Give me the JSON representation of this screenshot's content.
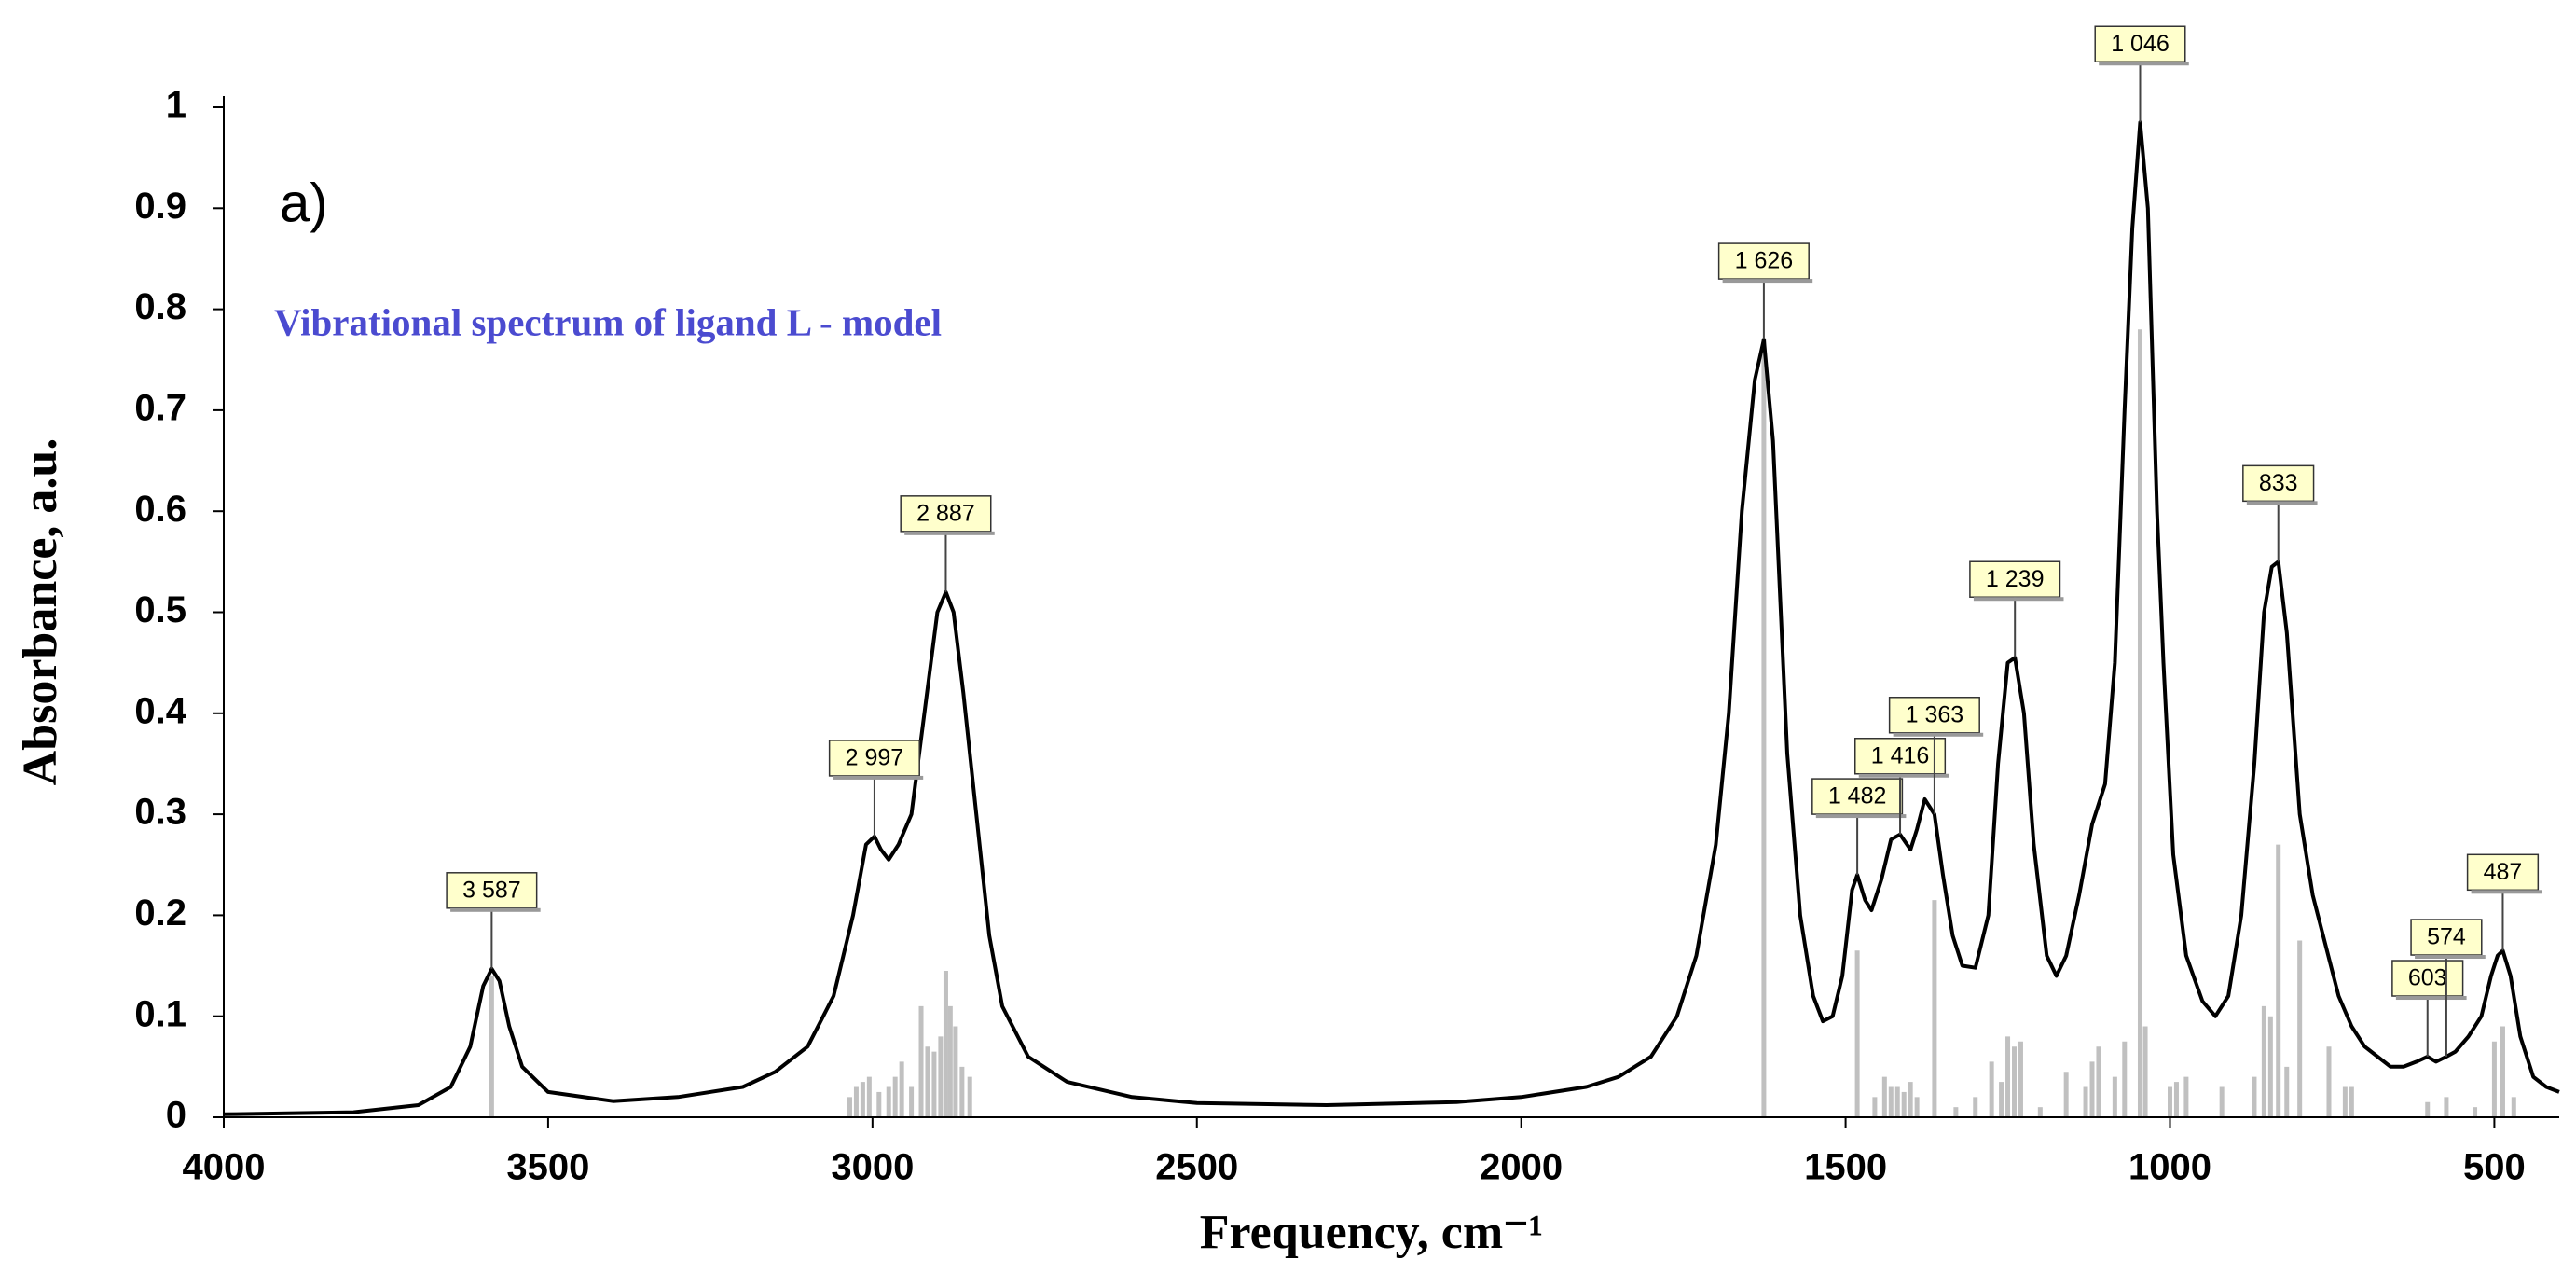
{
  "chart_data": {
    "type": "line",
    "panel_label": "a)",
    "annotation": "Vibrational spectrum of ligand L - model",
    "x_label": "Frequency, cm⁻¹",
    "y_label": "Absorbance, a.u.",
    "xlim": [
      4000,
      400
    ],
    "ylim": [
      0,
      1
    ],
    "xticks": [
      4000,
      3500,
      3000,
      2500,
      2000,
      1500,
      1000,
      500
    ],
    "yticks": [
      0,
      0.1,
      0.2,
      0.3,
      0.4,
      0.5,
      0.6,
      0.7,
      0.8,
      0.9,
      1
    ],
    "color": "#000000",
    "x": [
      4000,
      3800,
      3700,
      3650,
      3620,
      3600,
      3587,
      3575,
      3560,
      3540,
      3500,
      3400,
      3300,
      3200,
      3150,
      3100,
      3060,
      3030,
      3010,
      2997,
      2987,
      2975,
      2960,
      2940,
      2920,
      2900,
      2887,
      2875,
      2860,
      2840,
      2820,
      2800,
      2760,
      2700,
      2600,
      2500,
      2300,
      2100,
      2000,
      1900,
      1850,
      1800,
      1760,
      1730,
      1700,
      1680,
      1660,
      1640,
      1626,
      1612,
      1590,
      1570,
      1550,
      1535,
      1520,
      1505,
      1490,
      1482,
      1470,
      1460,
      1445,
      1430,
      1416,
      1400,
      1390,
      1378,
      1363,
      1350,
      1335,
      1320,
      1300,
      1280,
      1265,
      1250,
      1239,
      1225,
      1210,
      1190,
      1175,
      1160,
      1140,
      1120,
      1100,
      1085,
      1070,
      1058,
      1046,
      1034,
      1020,
      1010,
      995,
      975,
      950,
      930,
      910,
      890,
      870,
      855,
      843,
      833,
      820,
      800,
      780,
      760,
      740,
      720,
      700,
      680,
      660,
      640,
      620,
      603,
      590,
      574,
      560,
      540,
      520,
      505,
      495,
      487,
      475,
      460,
      440,
      420,
      400
    ],
    "values": [
      0.003,
      0.005,
      0.012,
      0.03,
      0.07,
      0.13,
      0.147,
      0.135,
      0.09,
      0.05,
      0.025,
      0.016,
      0.02,
      0.03,
      0.045,
      0.07,
      0.12,
      0.2,
      0.27,
      0.278,
      0.265,
      0.255,
      0.27,
      0.3,
      0.4,
      0.5,
      0.52,
      0.5,
      0.42,
      0.3,
      0.18,
      0.11,
      0.06,
      0.035,
      0.02,
      0.014,
      0.012,
      0.015,
      0.02,
      0.03,
      0.04,
      0.06,
      0.1,
      0.16,
      0.27,
      0.4,
      0.6,
      0.73,
      0.77,
      0.67,
      0.36,
      0.2,
      0.12,
      0.095,
      0.1,
      0.14,
      0.225,
      0.24,
      0.215,
      0.205,
      0.235,
      0.275,
      0.28,
      0.265,
      0.285,
      0.315,
      0.3,
      0.24,
      0.18,
      0.15,
      0.148,
      0.2,
      0.35,
      0.45,
      0.455,
      0.4,
      0.27,
      0.16,
      0.14,
      0.16,
      0.22,
      0.29,
      0.33,
      0.45,
      0.7,
      0.88,
      0.985,
      0.9,
      0.6,
      0.45,
      0.26,
      0.16,
      0.115,
      0.1,
      0.12,
      0.2,
      0.35,
      0.5,
      0.545,
      0.55,
      0.48,
      0.3,
      0.22,
      0.17,
      0.12,
      0.09,
      0.07,
      0.06,
      0.05,
      0.05,
      0.055,
      0.06,
      0.055,
      0.06,
      0.065,
      0.08,
      0.1,
      0.14,
      0.16,
      0.165,
      0.14,
      0.08,
      0.04,
      0.03,
      0.025
    ],
    "sticks": {
      "color": "#c0c0c0",
      "x": [
        3587,
        3035,
        3025,
        3015,
        3005,
        2990,
        2975,
        2965,
        2955,
        2940,
        2925,
        2915,
        2905,
        2895,
        2887,
        2880,
        2872,
        2862,
        2850,
        1626,
        1482,
        1455,
        1440,
        1430,
        1420,
        1410,
        1400,
        1390,
        1363,
        1330,
        1300,
        1275,
        1260,
        1250,
        1240,
        1230,
        1200,
        1160,
        1130,
        1120,
        1110,
        1085,
        1070,
        1046,
        1038,
        1000,
        990,
        975,
        920,
        870,
        855,
        845,
        833,
        820,
        800,
        755,
        730,
        720,
        603,
        574,
        530,
        500,
        487,
        470
      ],
      "values": [
        0.14,
        0.02,
        0.03,
        0.035,
        0.04,
        0.025,
        0.03,
        0.04,
        0.055,
        0.03,
        0.11,
        0.07,
        0.065,
        0.08,
        0.145,
        0.11,
        0.09,
        0.05,
        0.04,
        0.77,
        0.165,
        0.02,
        0.04,
        0.03,
        0.03,
        0.025,
        0.035,
        0.02,
        0.215,
        0.01,
        0.02,
        0.055,
        0.035,
        0.08,
        0.07,
        0.075,
        0.01,
        0.045,
        0.03,
        0.055,
        0.07,
        0.04,
        0.075,
        0.78,
        0.09,
        0.03,
        0.035,
        0.04,
        0.03,
        0.04,
        0.11,
        0.1,
        0.27,
        0.05,
        0.175,
        0.07,
        0.03,
        0.03,
        0.015,
        0.02,
        0.01,
        0.075,
        0.09,
        0.02
      ]
    },
    "peak_labels": [
      {
        "value": 3587,
        "label": "3 587"
      },
      {
        "value": 2997,
        "label": "2 997"
      },
      {
        "value": 2887,
        "label": "2 887"
      },
      {
        "value": 1626,
        "label": "1 626"
      },
      {
        "value": 1482,
        "label": "1 482"
      },
      {
        "value": 1416,
        "label": "1 416"
      },
      {
        "value": 1363,
        "label": "1 363"
      },
      {
        "value": 1239,
        "label": "1 239"
      },
      {
        "value": 1046,
        "label": "1 046"
      },
      {
        "value": 833,
        "label": "833"
      },
      {
        "value": 603,
        "label": "603"
      },
      {
        "value": 574,
        "label": "574"
      },
      {
        "value": 487,
        "label": "487"
      }
    ]
  }
}
